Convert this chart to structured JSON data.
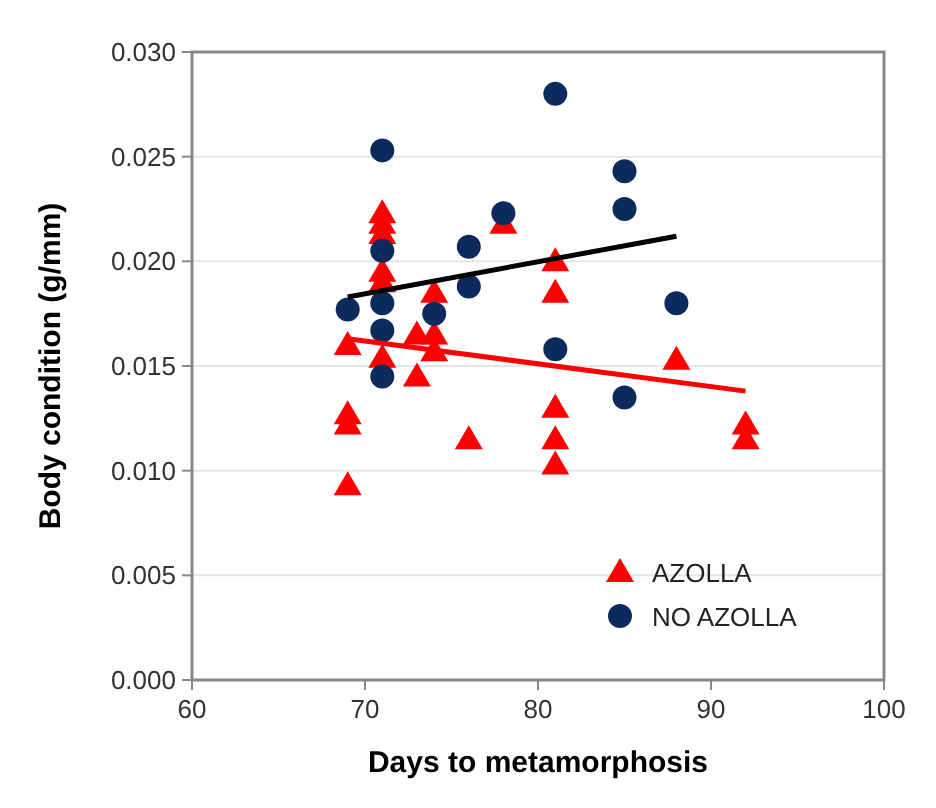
{
  "chart_data": {
    "type": "scatter",
    "xlabel": "Days to metamorphosis",
    "ylabel": "Body condition (g/mm)",
    "xlim": [
      60,
      100
    ],
    "xticks": [
      60,
      70,
      80,
      90,
      100
    ],
    "ylim": [
      0,
      0.03
    ],
    "yticks": [
      {
        "value": 0,
        "label": "0.000"
      },
      {
        "value": 0.005,
        "label": "0.005"
      },
      {
        "value": 0.01,
        "label": "0.010"
      },
      {
        "value": 0.015,
        "label": "0.015"
      },
      {
        "value": 0.02,
        "label": "0.020"
      },
      {
        "value": 0.025,
        "label": "0.025"
      },
      {
        "value": 0.03,
        "label": "0.030"
      }
    ],
    "grid": "y",
    "legend": "bottom right",
    "series": [
      {
        "name": "AZOLLA",
        "color": "#ff0000",
        "marker": "triangle",
        "x": [
          69,
          69,
          69,
          69,
          71,
          71,
          71,
          71,
          71,
          71,
          73,
          73,
          74,
          74,
          74,
          76,
          78,
          81,
          81,
          81,
          81,
          81,
          88,
          92,
          92
        ],
        "values": [
          0.016,
          0.0127,
          0.0122,
          0.0093,
          0.0223,
          0.0218,
          0.0213,
          0.0195,
          0.019,
          0.0154,
          0.0165,
          0.0145,
          0.0185,
          0.0165,
          0.0157,
          0.0115,
          0.0218,
          0.02,
          0.0185,
          0.013,
          0.0115,
          0.0103,
          0.0153,
          0.0122,
          0.0115
        ]
      },
      {
        "name": "NO AZOLLA",
        "color": "#0d2a5e",
        "marker": "circle",
        "x": [
          69,
          71,
          71,
          71,
          71,
          71,
          74,
          76,
          76,
          78,
          81,
          81,
          85,
          85,
          85,
          88
        ],
        "values": [
          0.0177,
          0.0253,
          0.0205,
          0.018,
          0.0167,
          0.0145,
          0.0175,
          0.0207,
          0.0188,
          0.0223,
          0.028,
          0.0158,
          0.0243,
          0.0225,
          0.0135,
          0.018
        ]
      },
      {
        "type": "line",
        "color": "#ff0000",
        "marker": "none",
        "x": [
          69,
          92
        ],
        "values": [
          0.0163,
          0.0138
        ]
      },
      {
        "type": "line",
        "color": "#000000",
        "marker": "none",
        "x": [
          69,
          88
        ],
        "values": [
          0.0183,
          0.0212
        ]
      }
    ]
  }
}
